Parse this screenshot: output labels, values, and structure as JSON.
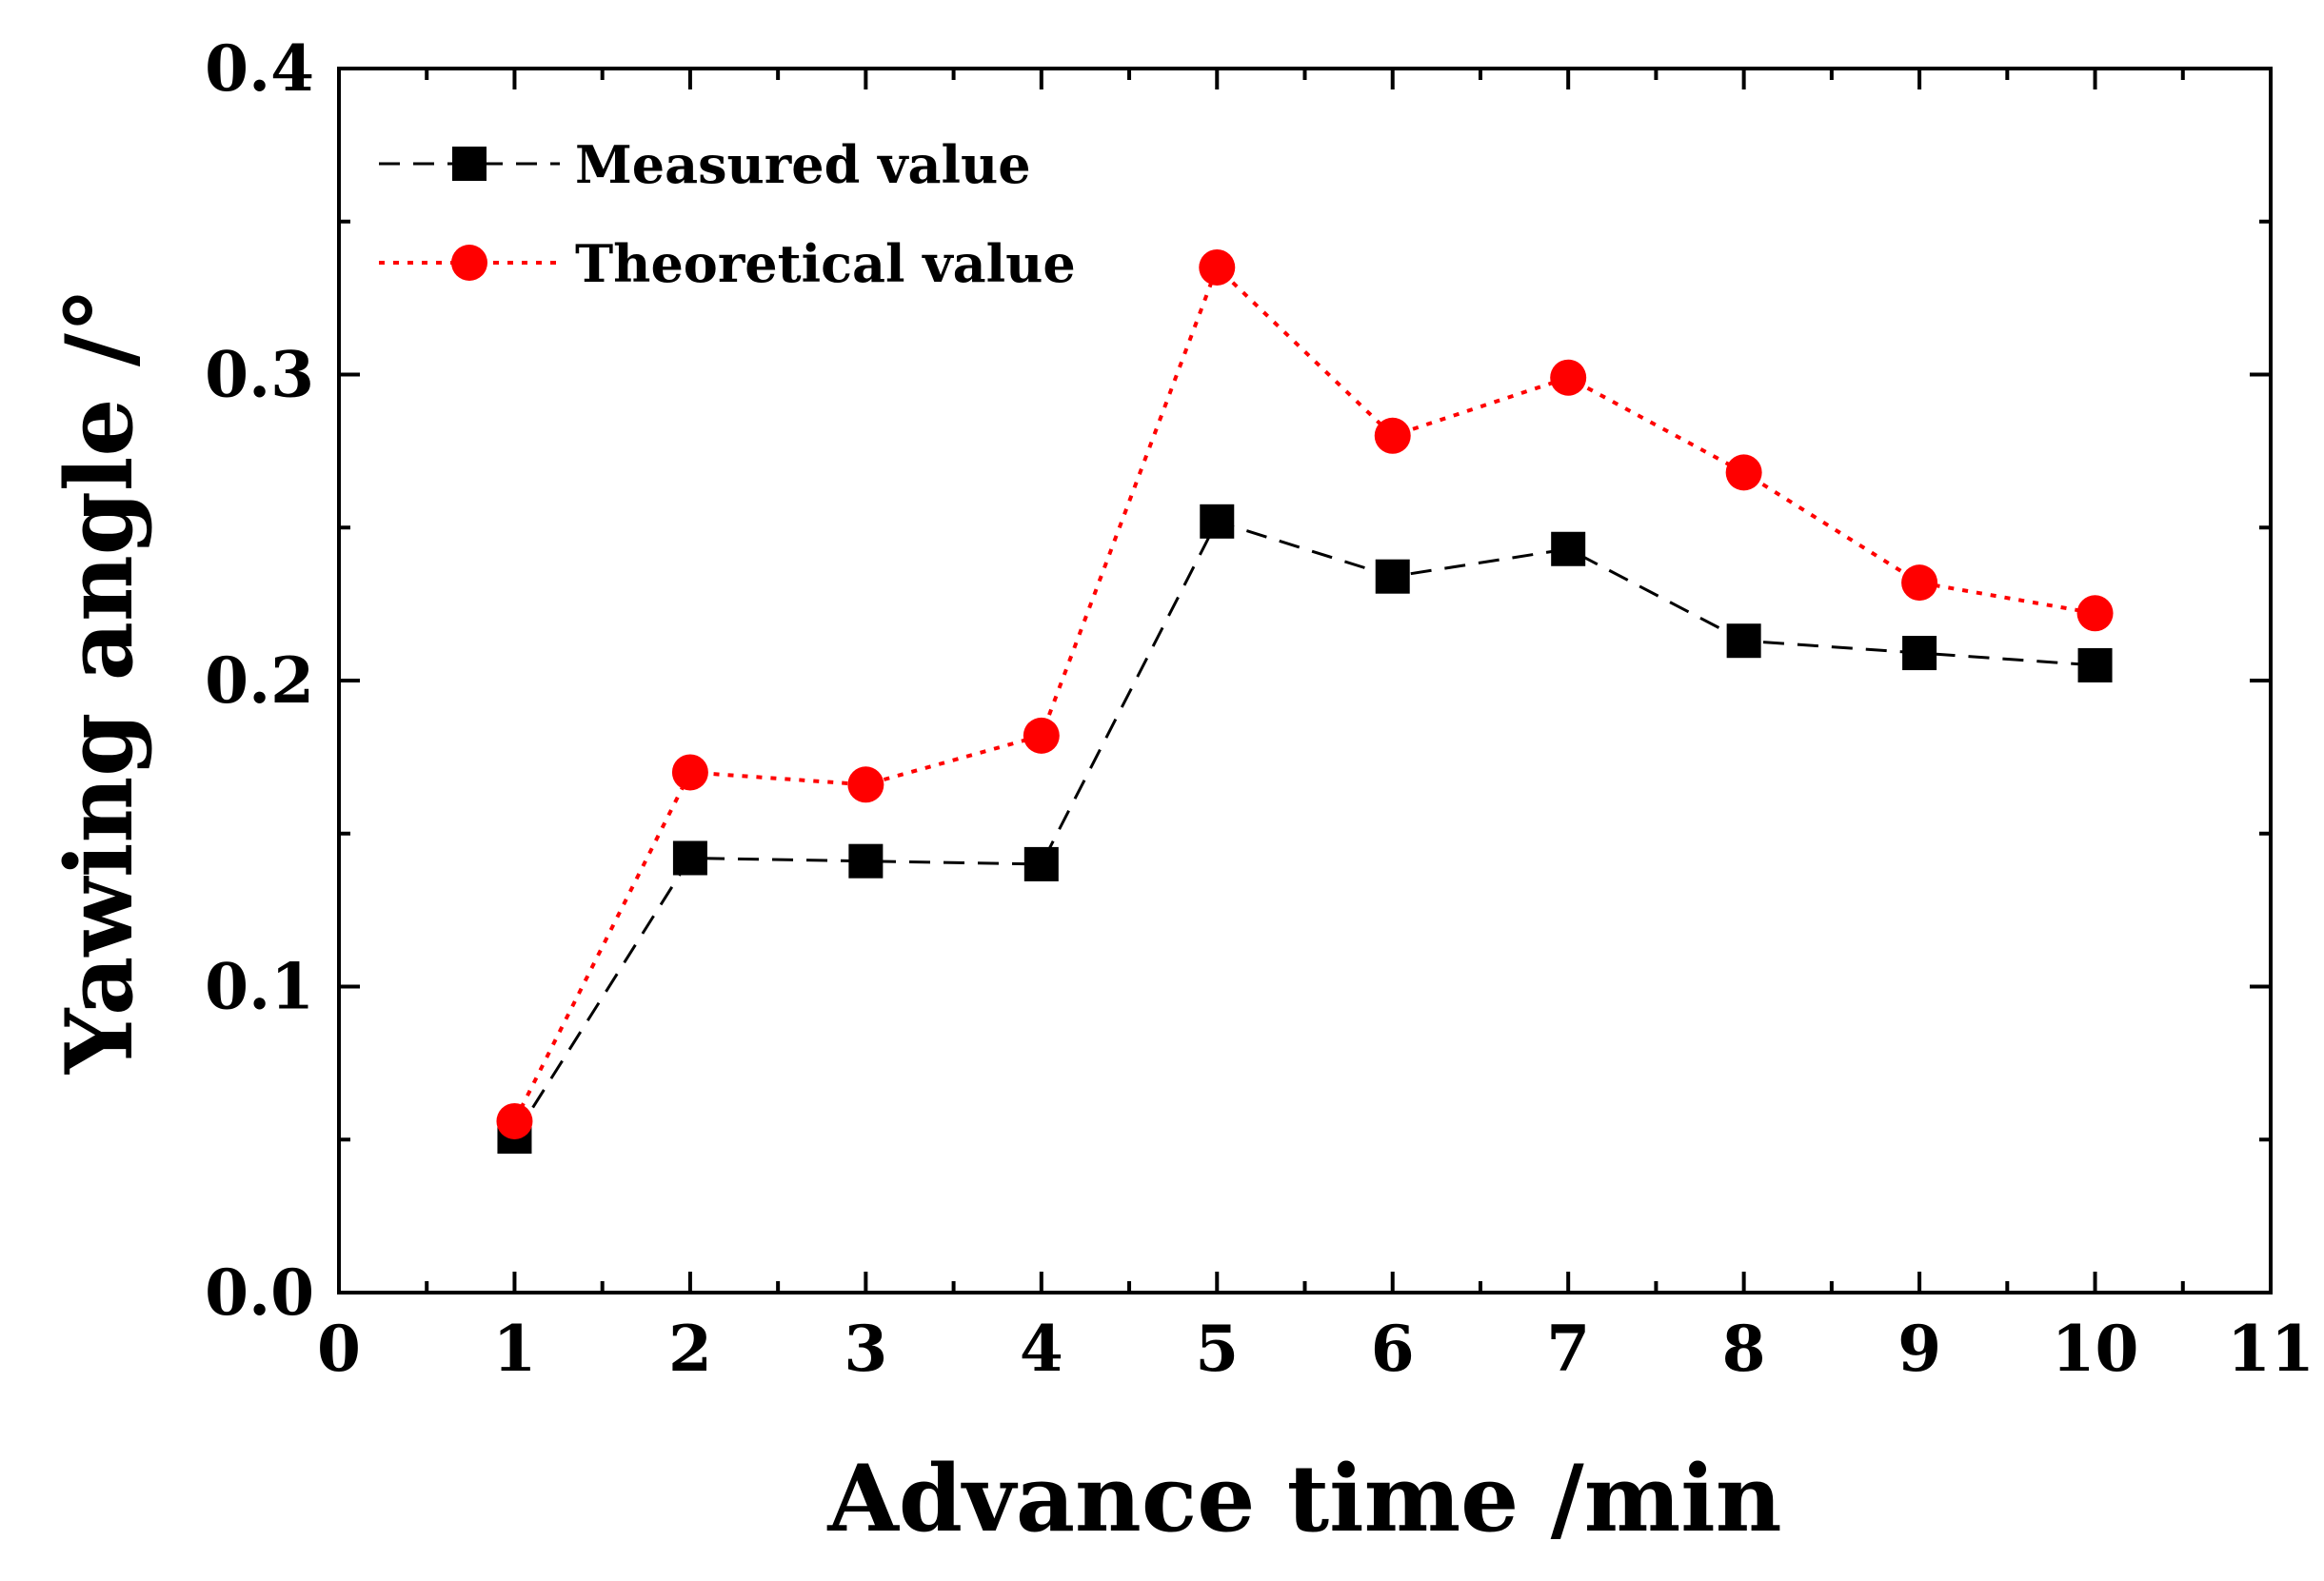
{
  "chart_data": {
    "type": "line",
    "title": "",
    "xlabel": "Advance time /min",
    "ylabel": "Yawing angle /°",
    "xlim": [
      0,
      11
    ],
    "ylim": [
      0,
      0.4
    ],
    "xticks": [
      0,
      1,
      2,
      3,
      4,
      5,
      6,
      7,
      8,
      9,
      10,
      11
    ],
    "xtick_labels": [
      "0",
      "1",
      "2",
      "3",
      "4",
      "5",
      "6",
      "7",
      "8",
      "9",
      "10",
      "11"
    ],
    "yticks": [
      0.0,
      0.1,
      0.2,
      0.3,
      0.4
    ],
    "ytick_labels": [
      "0.0",
      "0.1",
      "0.2",
      "0.3",
      "0.4"
    ],
    "grid": false,
    "legend_position": "top-left",
    "x": [
      1,
      2,
      3,
      4,
      5,
      6,
      7,
      8,
      9,
      10
    ],
    "series": [
      {
        "name": "Measured value",
        "values": [
          0.051,
          0.142,
          0.141,
          0.14,
          0.252,
          0.234,
          0.243,
          0.213,
          0.209,
          0.205
        ],
        "color": "#000000",
        "marker": "square",
        "line_style": "dashed"
      },
      {
        "name": "Theoretical value",
        "values": [
          0.056,
          0.17,
          0.166,
          0.182,
          0.335,
          0.28,
          0.299,
          0.268,
          0.232,
          0.222
        ],
        "color": "#ff0000",
        "marker": "circle",
        "line_style": "dotted"
      }
    ]
  }
}
